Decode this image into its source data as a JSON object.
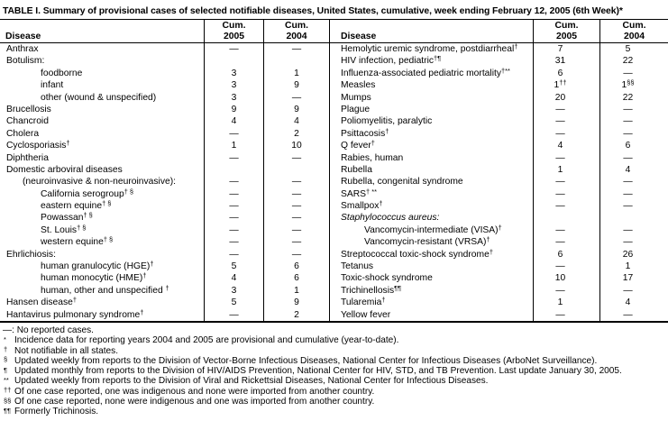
{
  "title": "TABLE I. Summary of provisional cases of selected notifiable diseases, United States, cumulative, week ending February 12, 2005 (6th Week)*",
  "header": {
    "disease": "Disease",
    "cum": "Cum.",
    "y2005": "2005",
    "y2004": "2004"
  },
  "table": {
    "left_rows": [
      {
        "label": "Anthrax",
        "indent": 0,
        "v05": "—",
        "v04": "—"
      },
      {
        "label": "Botulism:",
        "indent": 0,
        "v05": "",
        "v04": ""
      },
      {
        "label": "foodborne",
        "indent": 2,
        "v05": "3",
        "v04": "1"
      },
      {
        "label": "infant",
        "indent": 2,
        "v05": "3",
        "v04": "9"
      },
      {
        "label": "other (wound & unspecified)",
        "indent": 2,
        "v05": "3",
        "v04": "—"
      },
      {
        "label": "Brucellosis",
        "indent": 0,
        "v05": "9",
        "v04": "9"
      },
      {
        "label": "Chancroid",
        "indent": 0,
        "v05": "4",
        "v04": "4"
      },
      {
        "label": "Cholera",
        "indent": 0,
        "v05": "—",
        "v04": "2"
      },
      {
        "label": "Cyclosporiasis",
        "sup": "†",
        "indent": 0,
        "v05": "1",
        "v04": "10"
      },
      {
        "label": "Diphtheria",
        "indent": 0,
        "v05": "—",
        "v04": "—"
      },
      {
        "label": "Domestic arboviral diseases",
        "indent": 0,
        "v05": "",
        "v04": ""
      },
      {
        "label": "(neuroinvasive & non-neuroinvasive):",
        "indent": 1,
        "v05": "—",
        "v04": "—"
      },
      {
        "label": "California serogroup",
        "sup": "† §",
        "indent": 2,
        "v05": "—",
        "v04": "—"
      },
      {
        "label": "eastern equine",
        "sup": "† §",
        "indent": 2,
        "v05": "—",
        "v04": "—"
      },
      {
        "label": "Powassan",
        "sup": "† §",
        "indent": 2,
        "v05": "—",
        "v04": "—"
      },
      {
        "label": "St. Louis",
        "sup": "† §",
        "indent": 2,
        "v05": "—",
        "v04": "—"
      },
      {
        "label": "western equine",
        "sup": "† §",
        "indent": 2,
        "v05": "—",
        "v04": "—"
      },
      {
        "label": "Ehrlichiosis:",
        "indent": 0,
        "v05": "—",
        "v04": "—"
      },
      {
        "label": "human granulocytic (HGE)",
        "sup": "†",
        "indent": 2,
        "v05": "5",
        "v04": "6"
      },
      {
        "label": "human monocytic (HME)",
        "sup": "†",
        "indent": 2,
        "v05": "4",
        "v04": "6"
      },
      {
        "label": "human, other and unspecified ",
        "sup": "†",
        "indent": 2,
        "v05": "3",
        "v04": "1"
      },
      {
        "label": "Hansen disease",
        "sup": "†",
        "indent": 0,
        "v05": "5",
        "v04": "9"
      },
      {
        "label": "Hantavirus pulmonary syndrome",
        "sup": "†",
        "indent": 0,
        "v05": "—",
        "v04": "2"
      }
    ],
    "right_rows": [
      {
        "label": "Hemolytic uremic syndrome, postdiarrheal",
        "sup": "†",
        "indent": 0,
        "v05": "7",
        "v04": "5"
      },
      {
        "label": "HIV infection, pediatric",
        "sup": "†¶",
        "indent": 0,
        "v05": "31",
        "v04": "22"
      },
      {
        "label": "Influenza-associated pediatric mortality",
        "sup": "†**",
        "indent": 0,
        "v05": "6",
        "v04": "—"
      },
      {
        "label": "Measles",
        "indent": 0,
        "v05": "1",
        "v05sup": "††",
        "v04": "1",
        "v04sup": "§§"
      },
      {
        "label": "Mumps",
        "indent": 0,
        "v05": "20",
        "v04": "22"
      },
      {
        "label": "Plague",
        "indent": 0,
        "v05": "—",
        "v04": "—"
      },
      {
        "label": "Poliomyelitis, paralytic",
        "indent": 0,
        "v05": "—",
        "v04": "—"
      },
      {
        "label": "Psittacosis",
        "sup": "†",
        "indent": 0,
        "v05": "—",
        "v04": "—"
      },
      {
        "label": "Q fever",
        "sup": "†",
        "indent": 0,
        "v05": "4",
        "v04": "6"
      },
      {
        "label": "Rabies, human",
        "indent": 0,
        "v05": "—",
        "v04": "—"
      },
      {
        "label": "Rubella",
        "indent": 0,
        "v05": "1",
        "v04": "4"
      },
      {
        "label": "Rubella, congenital syndrome",
        "indent": 0,
        "v05": "—",
        "v04": "—"
      },
      {
        "label": "SARS",
        "sup": "† **",
        "indent": 0,
        "v05": "—",
        "v04": "—"
      },
      {
        "label": "Smallpox",
        "sup": "†",
        "indent": 0,
        "v05": "—",
        "v04": "—"
      },
      {
        "label": "Staphylococcus aureus:",
        "italic": true,
        "indent": 0,
        "v05": "",
        "v04": ""
      },
      {
        "label": "Vancomycin-intermediate (VISA)",
        "sup": "†",
        "indent": 2,
        "v05": "—",
        "v04": "—"
      },
      {
        "label": "Vancomycin-resistant (VRSA)",
        "sup": "†",
        "indent": 2,
        "v05": "—",
        "v04": "—"
      },
      {
        "label": "Streptococcal toxic-shock syndrome",
        "sup": "†",
        "indent": 0,
        "v05": "6",
        "v04": "26"
      },
      {
        "label": "Tetanus",
        "indent": 0,
        "v05": "—",
        "v04": "1"
      },
      {
        "label": "Toxic-shock syndrome",
        "indent": 0,
        "v05": "10",
        "v04": "17"
      },
      {
        "label": "Trichinellosis",
        "sup": "¶¶",
        "indent": 0,
        "v05": "—",
        "v04": "—"
      },
      {
        "label": "Tularemia",
        "sup": "†",
        "indent": 0,
        "v05": "1",
        "v04": "4"
      },
      {
        "label": "Yellow fever",
        "indent": 0,
        "v05": "—",
        "v04": "—"
      }
    ]
  },
  "footnotes": [
    {
      "marker": "—:",
      "superscript": false,
      "text": "No reported cases."
    },
    {
      "marker": "*",
      "superscript": true,
      "text": "Incidence data for reporting years 2004 and 2005 are provisional and cumulative (year-to-date)."
    },
    {
      "marker": "†",
      "superscript": true,
      "text": "Not notifiable in all states."
    },
    {
      "marker": "§",
      "superscript": true,
      "text": "Updated weekly from reports to the Division of Vector-Borne Infectious Diseases, National Center for Infectious Diseases (ArboNet Surveillance)."
    },
    {
      "marker": "¶",
      "superscript": true,
      "text": "Updated monthly from reports to the Division of HIV/AIDS Prevention, National Center for HIV, STD, and TB Prevention. Last update January 30, 2005."
    },
    {
      "marker": "**",
      "superscript": true,
      "text": "Updated weekly from reports to the Division of Viral and Rickettsial Diseases, National Center for Infectious Diseases."
    },
    {
      "marker": "††",
      "superscript": true,
      "text": "Of one case reported, one was indigenous and none were imported from another country."
    },
    {
      "marker": "§§",
      "superscript": true,
      "text": "Of one case reported, none were indigenous and one was imported from another country."
    },
    {
      "marker": "¶¶",
      "superscript": true,
      "text": "Formerly Trichinosis."
    }
  ],
  "colors": {
    "text": "#000000",
    "rule": "#000000",
    "page_background": "#ffffff"
  }
}
